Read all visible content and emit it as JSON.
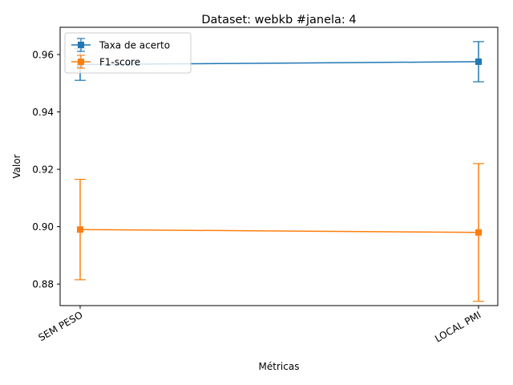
{
  "chart_data": {
    "type": "line",
    "title": "Dataset: webkb #janela: 4",
    "xlabel": "Métricas",
    "ylabel": "Valor",
    "categories": [
      "SEM PESO",
      "LOCAL PMI"
    ],
    "ylim": [
      0.8725,
      0.9695
    ],
    "yticks": [
      "0.88",
      "0.90",
      "0.92",
      "0.94",
      "0.96"
    ],
    "grid": false,
    "legend_position": "top-left",
    "series": [
      {
        "name": "Taxa de acerto",
        "color": "#1f77b4",
        "marker": "square",
        "values": [
          0.9565,
          0.9575
        ],
        "error": [
          0.0055,
          0.007
        ]
      },
      {
        "name": "F1-score",
        "color": "#ff7f0e",
        "marker": "square",
        "values": [
          0.899,
          0.898
        ],
        "error": [
          0.0175,
          0.024
        ]
      }
    ]
  }
}
